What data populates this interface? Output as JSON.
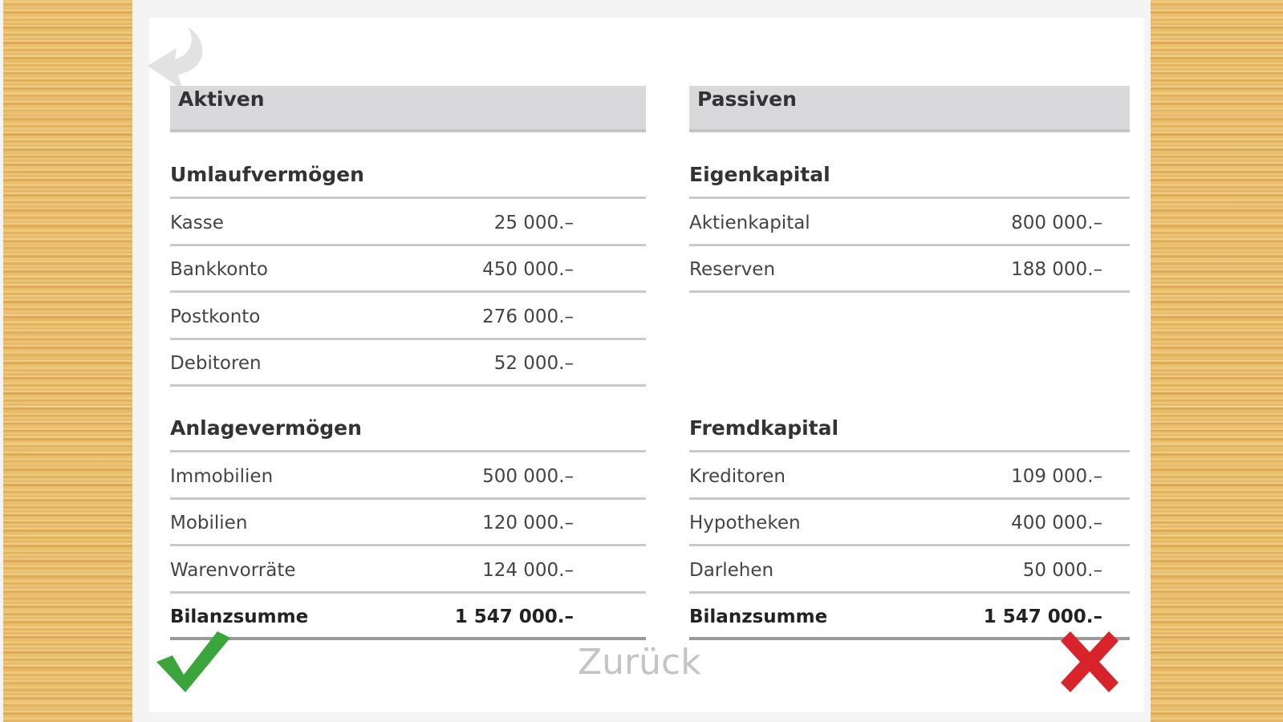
{
  "aktiven": {
    "title": "Aktiven",
    "sections": [
      {
        "title": "Umlaufvermögen",
        "rows": [
          {
            "label": "Kasse",
            "value": "25 000.–"
          },
          {
            "label": "Bankkonto",
            "value": "450 000.–"
          },
          {
            "label": "Postkonto",
            "value": "276 000.–"
          },
          {
            "label": "Debitoren",
            "value": "52 000.–"
          }
        ]
      },
      {
        "title": "Anlagevermögen",
        "rows": [
          {
            "label": "Immobilien",
            "value": "500 000.–"
          },
          {
            "label": "Mobilien",
            "value": "120 000.–"
          },
          {
            "label": "Warenvorräte",
            "value": "124 000.–"
          }
        ]
      }
    ],
    "total": {
      "label": "Bilanzsumme",
      "value": "1 547 000.–"
    }
  },
  "passiven": {
    "title": "Passiven",
    "sections": [
      {
        "title": "Eigenkapital",
        "rows": [
          {
            "label": "Aktienkapital",
            "value": "800 000.–"
          },
          {
            "label": "Reserven",
            "value": "188 000.–"
          }
        ]
      },
      {
        "title": "Fremdkapital",
        "rows": [
          {
            "label": "Kreditoren",
            "value": "109 000.–"
          },
          {
            "label": "Hypotheken",
            "value": "400 000.–"
          },
          {
            "label": "Darlehen",
            "value": "50 000.–"
          }
        ]
      }
    ],
    "total": {
      "label": "Bilanzsumme",
      "value": "1 547 000.–"
    }
  },
  "footer": {
    "back_label": "Zurück",
    "check_icon": "check-icon",
    "close_icon": "close-icon",
    "check_color": "#3aa53a",
    "close_color": "#d9232a"
  },
  "undo_icon": "undo-arrow-icon"
}
